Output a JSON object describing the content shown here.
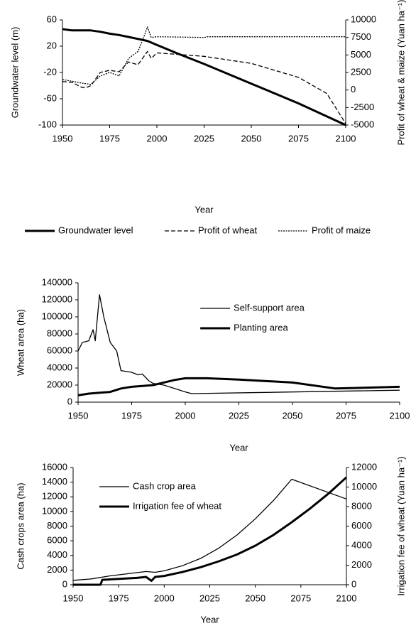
{
  "chart_data": [
    {
      "type": "line",
      "xlabel": "Year",
      "ylabel": "Groundwater level (m)",
      "y2label": "Profit of wheat & maize (Yuan ha⁻¹)",
      "xlim": [
        1950,
        2100
      ],
      "xticks": [
        1950,
        1975,
        2000,
        2025,
        2050,
        2075,
        2100
      ],
      "ylim": [
        -100,
        60
      ],
      "yticks": [
        -100,
        -60,
        -20,
        20,
        60
      ],
      "y2lim": [
        -5000,
        10000
      ],
      "y2ticks": [
        -5000,
        -2500,
        0,
        2500,
        5000,
        7500,
        10000
      ],
      "legend": "bottom",
      "series": [
        {
          "name": "Groundwater level",
          "color": "#000000",
          "line_style": "solid",
          "line_width": 3,
          "x": [
            1950,
            1955,
            1960,
            1965,
            1970,
            1975,
            1980,
            1985,
            1990,
            1995,
            2000,
            2010,
            2025,
            2050,
            2075,
            2100
          ],
          "values": [
            46,
            44,
            44,
            44,
            42,
            39,
            37,
            34,
            31,
            28,
            22,
            10,
            -7,
            -37,
            -67,
            -100
          ]
        },
        {
          "name": "Profit of wheat",
          "color": "#000000",
          "line_style": "dashed",
          "line_width": 1.3,
          "axis": "y2",
          "x": [
            1950,
            1955,
            1960,
            1962,
            1965,
            1970,
            1975,
            1980,
            1985,
            1990,
            1995,
            1997,
            2000,
            2005,
            2025,
            2050,
            2075,
            2090,
            2100
          ],
          "values": [
            1200,
            1100,
            400,
            300,
            600,
            2500,
            2800,
            2600,
            4000,
            3600,
            5500,
            4500,
            5300,
            5200,
            4800,
            3800,
            1800,
            -500,
            -4800
          ]
        },
        {
          "name": "Profit of maize",
          "color": "#000000",
          "line_style": "dotted",
          "line_width": 1.3,
          "axis": "y2",
          "x": [
            1950,
            1960,
            1965,
            1970,
            1975,
            1980,
            1985,
            1990,
            1993,
            1995,
            1997,
            2000,
            2025,
            2027,
            2100
          ],
          "values": [
            1500,
            1000,
            800,
            2000,
            2500,
            2000,
            4500,
            5500,
            7500,
            9000,
            7500,
            7600,
            7500,
            7600,
            7600
          ]
        }
      ]
    },
    {
      "type": "line",
      "xlabel": "Year",
      "ylabel": "Wheat area (ha)",
      "xlim": [
        1950,
        2100
      ],
      "xticks": [
        1950,
        1975,
        2000,
        2025,
        2050,
        2075,
        2100
      ],
      "ylim": [
        0,
        140000
      ],
      "yticks": [
        0,
        20000,
        40000,
        60000,
        80000,
        100000,
        120000,
        140000
      ],
      "legend": "upper center",
      "series": [
        {
          "name": "Self-support area",
          "color": "#000000",
          "line_style": "solid",
          "line_width": 1.3,
          "x": [
            1950,
            1952,
            1955,
            1957,
            1958,
            1960,
            1962,
            1965,
            1968,
            1970,
            1975,
            1978,
            1980,
            1983,
            1985,
            1990,
            1995,
            2000,
            2003,
            2100
          ],
          "values": [
            60000,
            70000,
            72000,
            85000,
            72000,
            126000,
            100000,
            70000,
            60000,
            37000,
            35000,
            32000,
            33000,
            25000,
            22000,
            20000,
            16000,
            12000,
            10000,
            14000
          ]
        },
        {
          "name": "Planting area",
          "color": "#000000",
          "line_style": "solid",
          "line_width": 3,
          "x": [
            1950,
            1955,
            1960,
            1965,
            1970,
            1975,
            1980,
            1985,
            1990,
            1995,
            2000,
            2010,
            2025,
            2050,
            2070,
            2100
          ],
          "values": [
            8000,
            10000,
            11000,
            12000,
            16000,
            18000,
            19000,
            20000,
            23000,
            26000,
            28000,
            28000,
            26500,
            23000,
            16000,
            18000
          ]
        }
      ]
    },
    {
      "type": "line",
      "xlabel": "Year",
      "ylabel": "Cash crops area (ha)",
      "y2label": "Irrigation fee of wheat (Yuan ha⁻¹)",
      "xlim": [
        1950,
        2100
      ],
      "xticks": [
        1950,
        1975,
        2000,
        2025,
        2050,
        2075,
        2100
      ],
      "ylim": [
        0,
        16000
      ],
      "yticks": [
        0,
        2000,
        4000,
        6000,
        8000,
        10000,
        12000,
        14000,
        16000
      ],
      "y2lim": [
        0,
        12000
      ],
      "y2ticks": [
        0,
        2000,
        4000,
        6000,
        8000,
        10000,
        12000
      ],
      "legend": "upper left",
      "series": [
        {
          "name": "Cash crop area",
          "color": "#000000",
          "line_style": "solid",
          "line_width": 1.3,
          "x": [
            1950,
            1960,
            1970,
            1980,
            1990,
            1995,
            2000,
            2010,
            2020,
            2030,
            2040,
            2050,
            2060,
            2070,
            2100
          ],
          "values": [
            600,
            800,
            1200,
            1500,
            1800,
            1700,
            1900,
            2600,
            3600,
            5000,
            6800,
            9000,
            11500,
            14400,
            11700
          ]
        },
        {
          "name": "Irrigation fee of wheat",
          "color": "#000000",
          "line_style": "solid",
          "line_width": 3,
          "axis": "y2",
          "x": [
            1950,
            1965,
            1966,
            1975,
            1985,
            1990,
            1993,
            1995,
            2000,
            2010,
            2020,
            2030,
            2040,
            2050,
            2060,
            2070,
            2080,
            2090,
            2100
          ],
          "values": [
            0,
            0,
            500,
            600,
            700,
            800,
            400,
            800,
            900,
            1300,
            1800,
            2400,
            3100,
            4000,
            5100,
            6400,
            7800,
            9300,
            11000
          ]
        }
      ]
    }
  ]
}
